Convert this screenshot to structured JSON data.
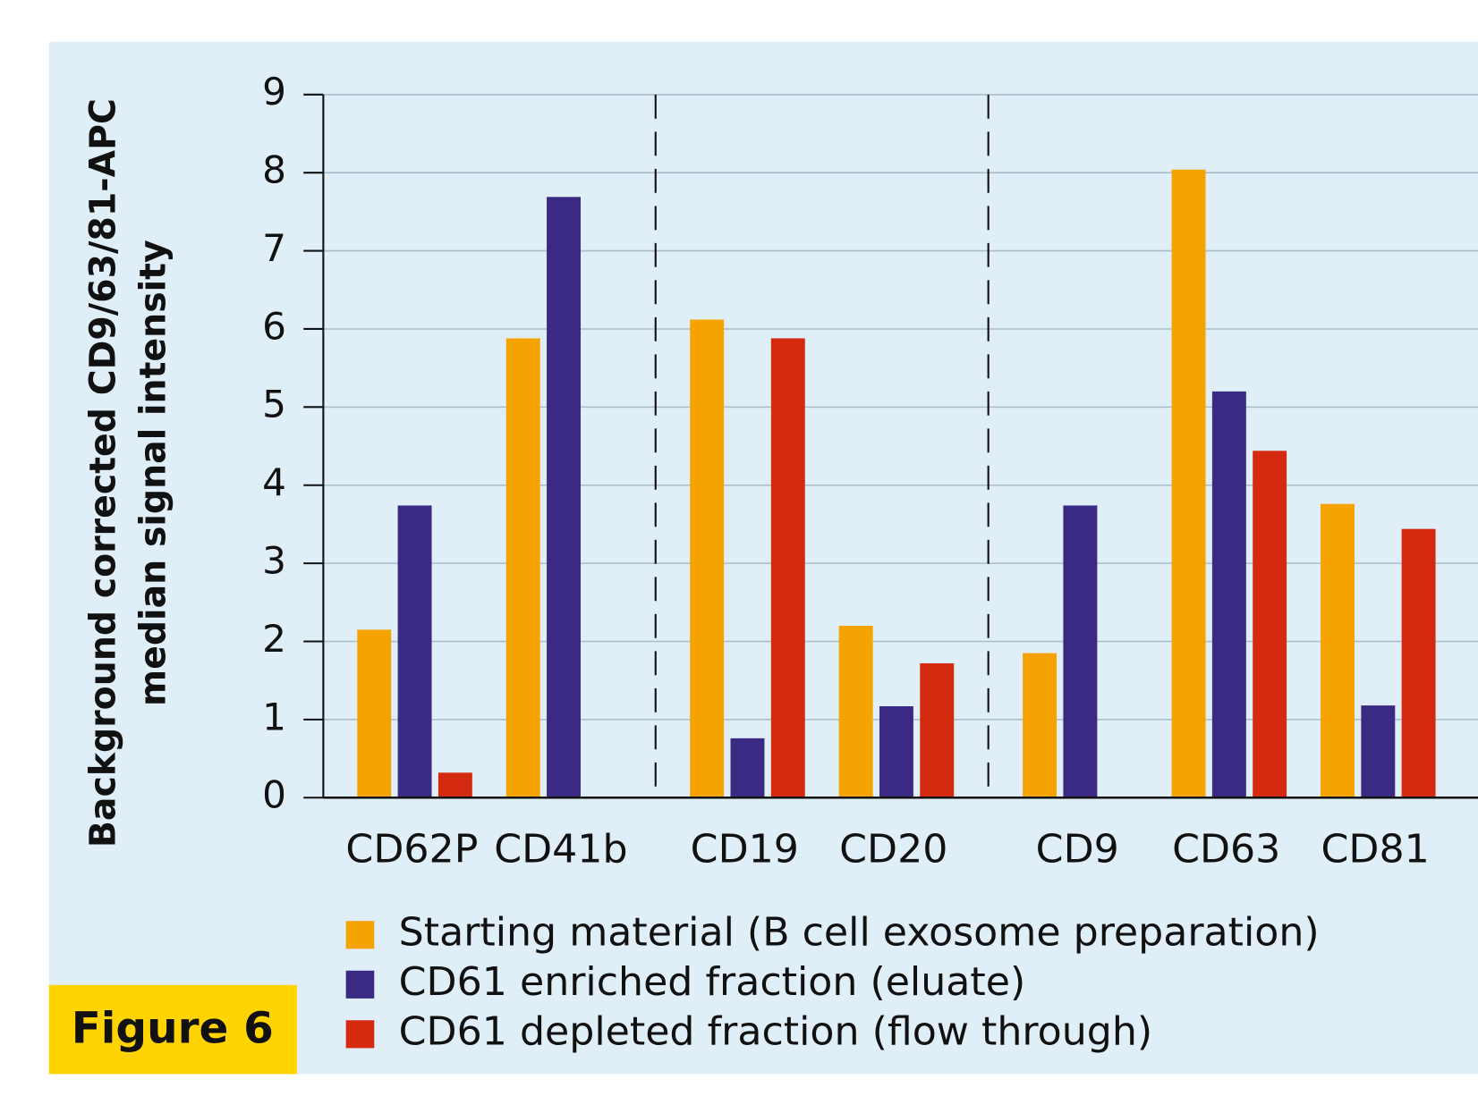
{
  "chart_data": {
    "type": "bar",
    "badge": "Figure 6",
    "ylabel": [
      "Background corrected CD9/63/81-APC",
      "median signal intensity"
    ],
    "categories": [
      "CD62P",
      "CD41b",
      "CD19",
      "CD20",
      "CD9",
      "CD63",
      "CD81"
    ],
    "series": [
      {
        "name": "Starting material (B cell exosome preparation)",
        "color": "#f5a300",
        "values": [
          2.15,
          5.88,
          6.12,
          2.2,
          1.85,
          8.04,
          3.76
        ]
      },
      {
        "name": "CD61 enriched fraction (eluate)",
        "color": "#3b2a83",
        "values": [
          3.74,
          7.69,
          0.76,
          1.17,
          3.74,
          5.2,
          1.18
        ]
      },
      {
        "name": "CD61 depleted fraction (flow through)",
        "color": "#d42a10",
        "values": [
          0.32,
          null,
          5.88,
          1.72,
          null,
          4.44,
          3.44
        ]
      }
    ],
    "ylim": [
      0,
      9
    ],
    "yticks": [
      0,
      1,
      2,
      3,
      4,
      5,
      6,
      7,
      8,
      9
    ],
    "grid": true
  }
}
